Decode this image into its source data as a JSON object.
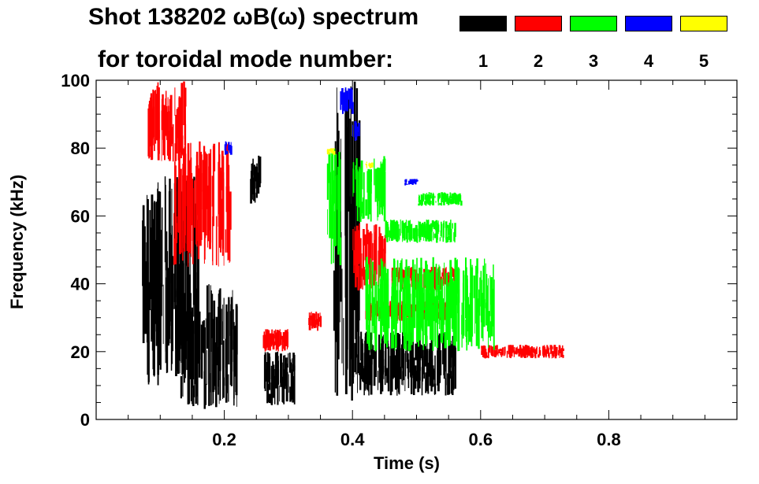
{
  "header": {
    "title_line1": "Shot 138202 ωB(ω) spectrum",
    "title_line2": "for toroidal mode number:"
  },
  "legend": [
    {
      "label": "1",
      "color": "#000000"
    },
    {
      "label": "2",
      "color": "#ff0000"
    },
    {
      "label": "3",
      "color": "#00ff00"
    },
    {
      "label": "4",
      "color": "#0000ff"
    },
    {
      "label": "5",
      "color": "#ffff00"
    }
  ],
  "chart_data": {
    "type": "heatmap",
    "title": "Shot 138202 ωB(ω) spectrum for toroidal mode number:",
    "xlabel": "Time (s)",
    "ylabel": "Frequency (kHz)",
    "xlim": [
      0.0,
      1.0
    ],
    "ylim": [
      0,
      100
    ],
    "xticks": [
      0.2,
      0.4,
      0.6,
      0.8
    ],
    "xtick_labels": [
      "0.2",
      "0.4",
      "0.6",
      "0.8"
    ],
    "yticks": [
      0,
      20,
      40,
      60,
      80,
      100
    ],
    "ytick_labels": [
      "0",
      "20",
      "40",
      "60",
      "80",
      "100"
    ],
    "series": [
      {
        "name": "n=1",
        "color": "#000000",
        "blobs": [
          {
            "t0": 0.07,
            "t1": 0.16,
            "f0": 10,
            "f1": 72
          },
          {
            "t0": 0.13,
            "t1": 0.22,
            "f0": 3,
            "f1": 40
          },
          {
            "t0": 0.24,
            "t1": 0.255,
            "f0": 63,
            "f1": 78
          },
          {
            "t0": 0.26,
            "t1": 0.31,
            "f0": 4,
            "f1": 20
          },
          {
            "t0": 0.4,
            "t1": 0.56,
            "f0": 7,
            "f1": 26
          },
          {
            "t0": 0.37,
            "t1": 0.41,
            "f0": 5,
            "f1": 100
          }
        ]
      },
      {
        "name": "n=2",
        "color": "#ff0000",
        "blobs": [
          {
            "t0": 0.08,
            "t1": 0.14,
            "f0": 76,
            "f1": 100
          },
          {
            "t0": 0.12,
            "t1": 0.21,
            "f0": 45,
            "f1": 82
          },
          {
            "t0": 0.26,
            "t1": 0.3,
            "f0": 20,
            "f1": 27
          },
          {
            "t0": 0.33,
            "t1": 0.35,
            "f0": 26,
            "f1": 32
          },
          {
            "t0": 0.4,
            "t1": 0.45,
            "f0": 38,
            "f1": 58
          },
          {
            "t0": 0.46,
            "t1": 0.56,
            "f0": 38,
            "f1": 45
          },
          {
            "t0": 0.42,
            "t1": 0.55,
            "f0": 29,
            "f1": 35
          },
          {
            "t0": 0.6,
            "t1": 0.73,
            "f0": 18,
            "f1": 22
          }
        ]
      },
      {
        "name": "n=3",
        "color": "#00ff00",
        "blobs": [
          {
            "t0": 0.36,
            "t1": 0.38,
            "f0": 45,
            "f1": 80
          },
          {
            "t0": 0.4,
            "t1": 0.45,
            "f0": 58,
            "f1": 78
          },
          {
            "t0": 0.45,
            "t1": 0.56,
            "f0": 52,
            "f1": 59
          },
          {
            "t0": 0.42,
            "t1": 0.62,
            "f0": 20,
            "f1": 48
          },
          {
            "t0": 0.5,
            "t1": 0.57,
            "f0": 63,
            "f1": 67
          }
        ]
      },
      {
        "name": "n=4",
        "color": "#0000ff",
        "blobs": [
          {
            "t0": 0.2,
            "t1": 0.21,
            "f0": 78,
            "f1": 82
          },
          {
            "t0": 0.38,
            "t1": 0.4,
            "f0": 90,
            "f1": 98
          },
          {
            "t0": 0.4,
            "t1": 0.41,
            "f0": 82,
            "f1": 88
          },
          {
            "t0": 0.48,
            "t1": 0.5,
            "f0": 69,
            "f1": 71
          }
        ]
      },
      {
        "name": "n=5",
        "color": "#ffff00",
        "blobs": [
          {
            "t0": 0.36,
            "t1": 0.37,
            "f0": 78,
            "f1": 80
          },
          {
            "t0": 0.42,
            "t1": 0.43,
            "f0": 74,
            "f1": 76
          }
        ]
      }
    ]
  }
}
